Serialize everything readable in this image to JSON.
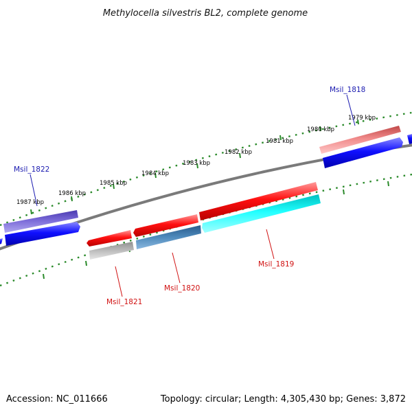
{
  "title": "Methylocella silvestris BL2, complete genome",
  "footer": {
    "accession": "Accession: NC_011666",
    "topology": "Topology: circular; Length: 4,305,430 bp; Genes: 3,872"
  },
  "ruler": {
    "labels": [
      "1979 kbp",
      "1980 kbp",
      "1981 kbp",
      "1982 kbp",
      "1983 kbp",
      "1984 kbp",
      "1985 kbp",
      "1986 kbp",
      "1987 kbp"
    ]
  },
  "gene_labels": {
    "msil_1818": "Msil_1818",
    "msil_1819": "Msil_1819",
    "msil_1820": "Msil_1820",
    "msil_1821": "Msil_1821",
    "msil_1822": "Msil_1822"
  },
  "colors": {
    "backbone": "#7a7a7a",
    "ruler_green": "#2a8a2a",
    "label_blue": "#1a1ab0",
    "label_red": "#d01010",
    "cds_blue": "#0a0af0",
    "cds_red": "#f01010",
    "cds_pink": "#f08080",
    "cds_purple": "#6a5acd",
    "cds_steel": "#4682b4",
    "cds_cyan": "#10f0f0",
    "cds_gray": "#b0b0b0"
  }
}
